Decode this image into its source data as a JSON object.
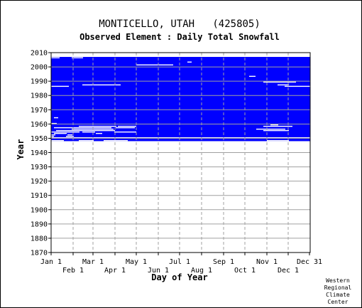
{
  "chart_data": {
    "type": "heatmap",
    "title": "MONTICELLO, UTAH   (425805)",
    "subtitle": "Observed Element : Daily Total Snowfall",
    "xlabel": "Day of Year",
    "ylabel": "Year",
    "ylim": [
      1870,
      2010
    ],
    "xlim": [
      1,
      366
    ],
    "y_ticks": [
      1870,
      1880,
      1890,
      1900,
      1910,
      1920,
      1930,
      1940,
      1950,
      1960,
      1970,
      1980,
      1990,
      2000,
      2010
    ],
    "x_ticks_top": [
      {
        "label": "Jan 1",
        "day": 1
      },
      {
        "label": "Mar 1",
        "day": 60
      },
      {
        "label": "May 1",
        "day": 121
      },
      {
        "label": "Jul 1",
        "day": 182
      },
      {
        "label": "Sep 1",
        "day": 244
      },
      {
        "label": "Nov 1",
        "day": 305
      },
      {
        "label": "Dec 31",
        "day": 365
      }
    ],
    "x_ticks_bottom": [
      {
        "label": "Feb 1",
        "day": 32
      },
      {
        "label": "Apr 1",
        "day": 91
      },
      {
        "label": "Jun 1",
        "day": 152
      },
      {
        "label": "Aug 1",
        "day": 213
      },
      {
        "label": "Oct 1",
        "day": 274
      },
      {
        "label": "Dec 1",
        "day": 335
      }
    ],
    "grid": true,
    "data_color": "#0000ff",
    "gap_color": "#ffffff",
    "record_start_year": 1948,
    "record_end_year": 2006,
    "data_blocks": [
      {
        "year_from": 1948,
        "year_to": 2006,
        "day_from": 1,
        "day_to": 365
      }
    ],
    "missing_segments": [
      {
        "year": 1948,
        "day_from": 1,
        "day_to": 18
      },
      {
        "year": 1948,
        "day_from": 40,
        "day_to": 60
      },
      {
        "year": 1948,
        "day_from": 75,
        "day_to": 108
      },
      {
        "year": 1948,
        "day_from": 305,
        "day_to": 335
      },
      {
        "year": 1950,
        "day_from": 1,
        "day_to": 365
      },
      {
        "year": 1951,
        "day_from": 1,
        "day_to": 4
      },
      {
        "year": 1951,
        "day_from": 22,
        "day_to": 32
      },
      {
        "year": 1952,
        "day_from": 1,
        "day_to": 6
      },
      {
        "year": 1952,
        "day_from": 24,
        "day_to": 30
      },
      {
        "year": 1953,
        "day_from": 5,
        "day_to": 22
      },
      {
        "year": 1953,
        "day_from": 64,
        "day_to": 72
      },
      {
        "year": 1954,
        "day_from": 1,
        "day_to": 40
      },
      {
        "year": 1954,
        "day_from": 45,
        "day_to": 62
      },
      {
        "year": 1954,
        "day_from": 90,
        "day_to": 120
      },
      {
        "year": 1955,
        "day_from": 8,
        "day_to": 90
      },
      {
        "year": 1955,
        "day_from": 300,
        "day_to": 335
      },
      {
        "year": 1956,
        "day_from": 30,
        "day_to": 88
      },
      {
        "year": 1956,
        "day_from": 290,
        "day_to": 330
      },
      {
        "year": 1957,
        "day_from": 5,
        "day_to": 85
      },
      {
        "year": 1957,
        "day_from": 92,
        "day_to": 118
      },
      {
        "year": 1958,
        "day_from": 40,
        "day_to": 92
      },
      {
        "year": 1958,
        "day_from": 95,
        "day_to": 120
      },
      {
        "year": 1958,
        "day_from": 300,
        "day_to": 340
      },
      {
        "year": 1959,
        "day_from": 310,
        "day_to": 320
      },
      {
        "year": 1960,
        "day_from": 1,
        "day_to": 8
      },
      {
        "year": 1964,
        "day_from": 5,
        "day_to": 10
      },
      {
        "year": 1986,
        "day_from": 1,
        "day_to": 25
      },
      {
        "year": 1986,
        "day_from": 330,
        "day_to": 365
      },
      {
        "year": 1987,
        "day_from": 45,
        "day_to": 98
      },
      {
        "year": 1987,
        "day_from": 320,
        "day_to": 335
      },
      {
        "year": 1989,
        "day_from": 300,
        "day_to": 345
      },
      {
        "year": 1993,
        "day_from": 280,
        "day_to": 288
      },
      {
        "year": 2001,
        "day_from": 121,
        "day_to": 172
      },
      {
        "year": 2003,
        "day_from": 193,
        "day_to": 198
      },
      {
        "year": 2006,
        "day_from": 1,
        "day_to": 12
      },
      {
        "year": 2006,
        "day_from": 30,
        "day_to": 45
      }
    ]
  },
  "credit": [
    "Western",
    "Regional",
    "Climate",
    "Center"
  ]
}
